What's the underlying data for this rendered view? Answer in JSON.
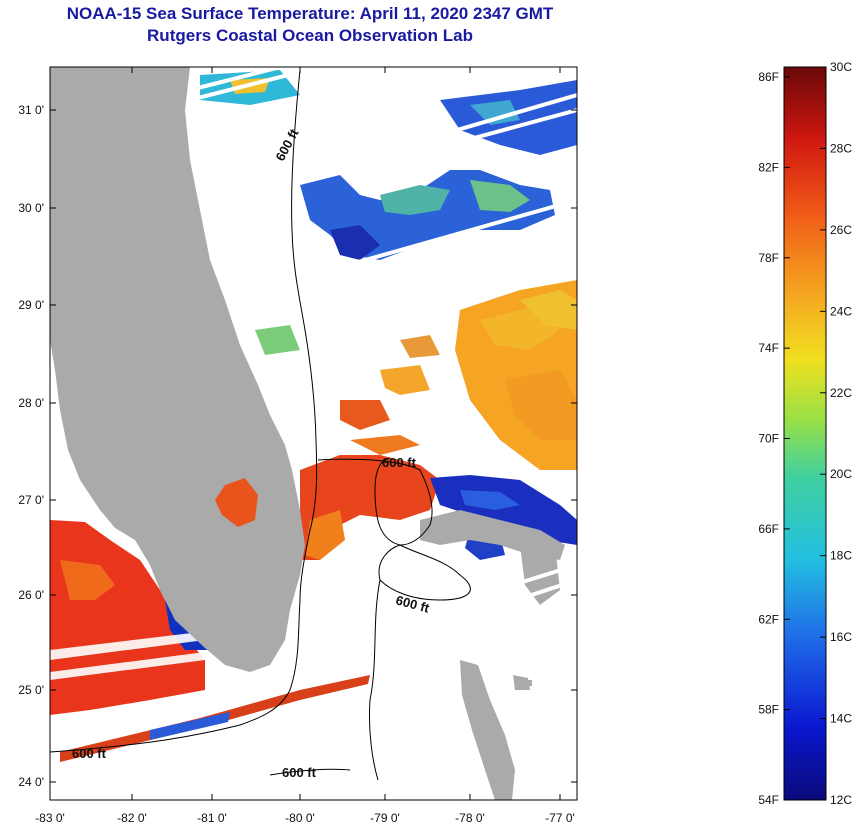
{
  "title": {
    "line1": "NOAA-15 Sea Surface Temperature:  April 11, 2020 2347 GMT",
    "line2": "Rutgers Coastal Ocean Observation Lab"
  },
  "map": {
    "lat_labels": [
      "31 0'",
      "30 0'",
      "29 0'",
      "28 0'",
      "27 0'",
      "26 0'",
      "25 0'",
      "24 0'"
    ],
    "lon_labels": [
      "-83 0'",
      "-82 0'",
      "-81 0'",
      "-80 0'",
      "-79 0'",
      "-78 0'",
      "-77 0'"
    ],
    "contour_labels": [
      "600 ft",
      "600 ft",
      "600 ft",
      "600 ft",
      "600 ft"
    ],
    "land_color": "#aaaaaa"
  },
  "colorbar": {
    "fahrenheit_labels": [
      "86F",
      "82F",
      "78F",
      "74F",
      "70F",
      "66F",
      "62F",
      "58F",
      "54F"
    ],
    "celsius_labels": [
      "30C",
      "28C",
      "26C",
      "24C",
      "22C",
      "20C",
      "18C",
      "16C",
      "14C",
      "12C"
    ],
    "min_c": 12,
    "max_c": 30
  }
}
